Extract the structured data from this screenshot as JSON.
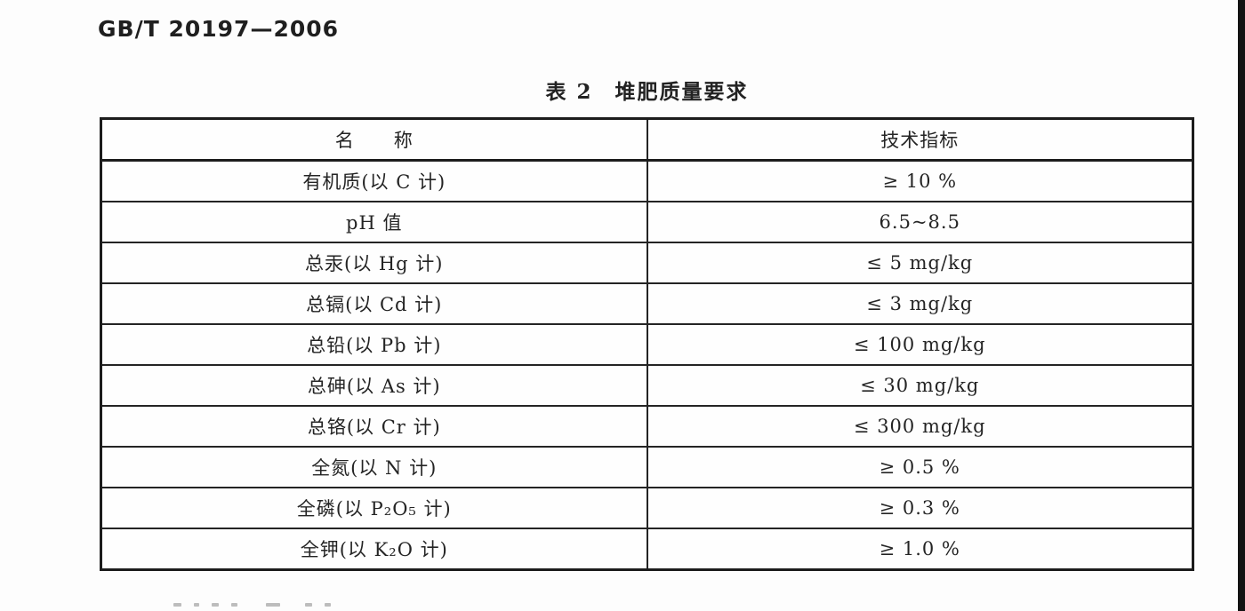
{
  "page": {
    "standard_code": "GB/T 20197—2006"
  },
  "colors": {
    "paper": "#fdfdfd",
    "ink": "#242424",
    "table_border": "#1c1c1c",
    "scan_edge": "#131313"
  },
  "table": {
    "caption": "表 2　堆肥质量要求",
    "columns": [
      "名　　称",
      "技术指标"
    ],
    "rows": [
      {
        "name": "有机质(以 C 计)",
        "value": "≥ 10 %"
      },
      {
        "name": "pH 值",
        "value": "6.5~8.5"
      },
      {
        "name": "总汞(以 Hg 计)",
        "value": "≤ 5 mg/kg"
      },
      {
        "name": "总镉(以 Cd 计)",
        "value": "≤ 3 mg/kg"
      },
      {
        "name": "总铅(以 Pb 计)",
        "value": "≤ 100 mg/kg"
      },
      {
        "name": "总砷(以 As 计)",
        "value": "≤ 30 mg/kg"
      },
      {
        "name": "总铬(以 Cr 计)",
        "value": "≤ 300 mg/kg"
      },
      {
        "name": "全氮(以 N 计)",
        "value": "≥ 0.5 %"
      },
      {
        "name": "全磷(以 P₂O₅ 计)",
        "value": "≥ 0.3 %"
      },
      {
        "name": "全钾(以 K₂O 计)",
        "value": "≥ 1.0 %"
      }
    ]
  }
}
